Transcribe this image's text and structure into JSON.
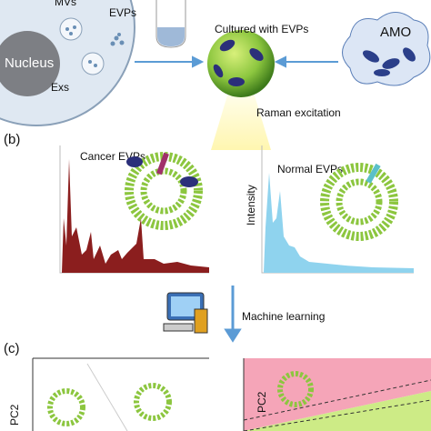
{
  "panel_a": {
    "mvs": "MVs",
    "evps": "EVPs",
    "exs": "Exs",
    "nucleus": "Nucleus",
    "cultured": "Cultured with EVPs",
    "amo": "AMO",
    "raman": "Raman excitation"
  },
  "panel_b": {
    "label": "(b)",
    "cancer": "Cancer EVPs",
    "normal": "Normal EVPs",
    "intensity": "Intensity"
  },
  "machine_learning": "Machine learning",
  "panel_c": {
    "label": "(c)",
    "left_axis": "PC2",
    "right_axis": "PC2"
  }
}
